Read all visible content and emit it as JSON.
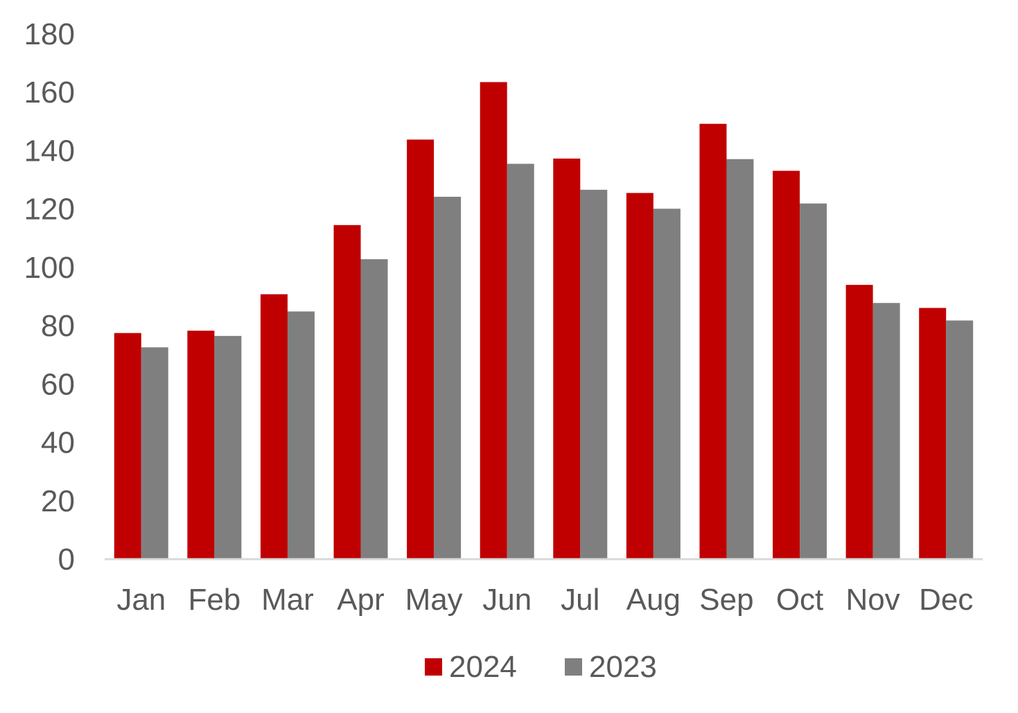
{
  "chart_data": {
    "type": "bar",
    "categories": [
      "Jan",
      "Feb",
      "Mar",
      "Apr",
      "May",
      "Jun",
      "Jul",
      "Aug",
      "Sep",
      "Oct",
      "Nov",
      "Dec"
    ],
    "series": [
      {
        "name": "2024",
        "color": "#c00000",
        "values": [
          77.5,
          78.3,
          90.8,
          114.5,
          143.8,
          163.5,
          137.3,
          125.5,
          149.2,
          133.1,
          94.0,
          86.1
        ]
      },
      {
        "name": "2023",
        "color": "#7f7f7f",
        "values": [
          72.6,
          76.5,
          84.9,
          102.8,
          124.2,
          135.5,
          126.6,
          120.1,
          137.1,
          121.9,
          87.8,
          81.8
        ]
      }
    ],
    "title": "",
    "xlabel": "",
    "ylabel": "",
    "ylim": [
      0,
      180
    ],
    "yticks": [
      "0",
      "20",
      "40",
      "60",
      "80",
      "100",
      "120",
      "140",
      "160",
      "180"
    ],
    "grid": false,
    "legend": "bottom"
  }
}
